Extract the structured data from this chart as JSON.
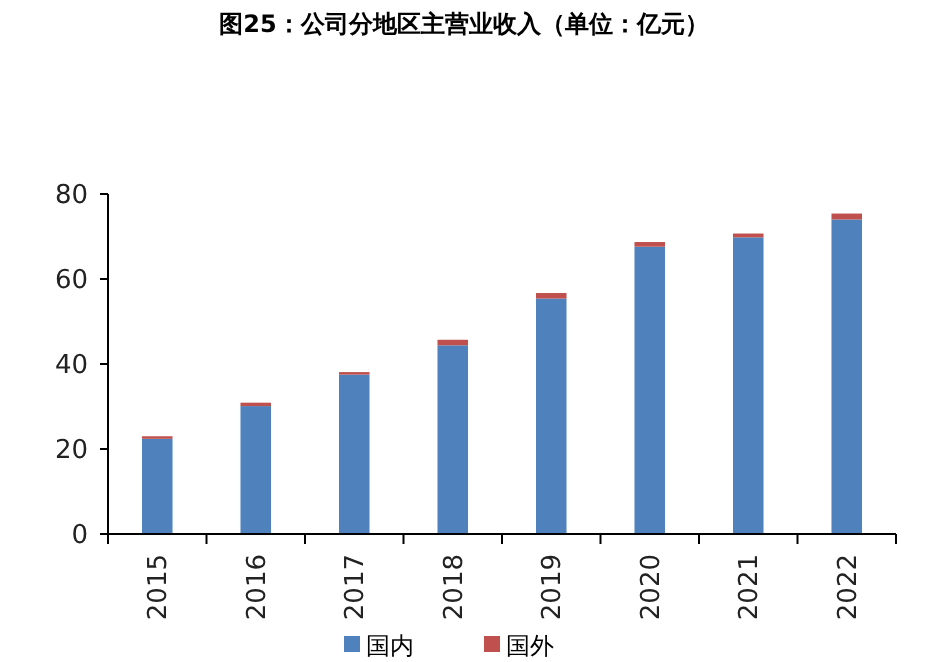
{
  "chart_data": {
    "type": "bar",
    "title": "图25：公司分地区主营业收入（单位：亿元）",
    "categories": [
      "2015",
      "2016",
      "2017",
      "2018",
      "2019",
      "2020",
      "2021",
      "2022"
    ],
    "stacked": true,
    "series": [
      {
        "name": "国内",
        "color": "#4f81bd",
        "values": [
          22.4,
          30.1,
          37.5,
          44.4,
          55.4,
          67.6,
          69.8,
          74.0
        ]
      },
      {
        "name": "国外",
        "color": "#c0504d",
        "values": [
          0.6,
          0.8,
          0.6,
          1.3,
          1.3,
          1.1,
          0.9,
          1.4
        ]
      }
    ],
    "ylim": [
      0,
      80
    ],
    "yticks": [
      0,
      20,
      40,
      60,
      80
    ],
    "legend": "bottom"
  }
}
